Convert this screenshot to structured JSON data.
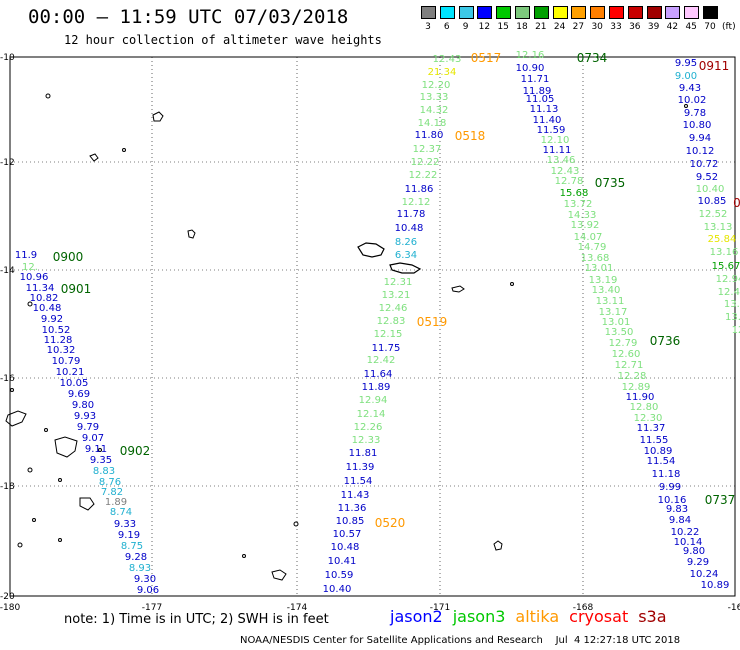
{
  "title": "00:00 – 11:59 UTC 07/03/2018",
  "subtitle": "12 hour collection of altimeter wave heights",
  "colorbar": {
    "labels": [
      "3",
      "6",
      "9",
      "12",
      "15",
      "18",
      "21",
      "24",
      "27",
      "30",
      "33",
      "36",
      "39",
      "42",
      "45",
      "70",
      "(ft)"
    ],
    "colors": [
      "#7f7f7f",
      "#00e5ff",
      "#3cc8e6",
      "#0000ff",
      "#00c800",
      "#7cc87c",
      "#00a000",
      "#ffff00",
      "#ffa000",
      "#ff7f00",
      "#ff0000",
      "#c80000",
      "#a00000",
      "#c8a0ff",
      "#ffc8ff",
      "#000000"
    ]
  },
  "axes": {
    "lat_labels": [
      "-10",
      "-12",
      "-14",
      "-16",
      "-18",
      "-20"
    ],
    "lon_labels": [
      "-180",
      "-177",
      "-174",
      "-171",
      "-168",
      "-16"
    ]
  },
  "times": [
    {
      "t": "0517",
      "c": "#ff9900"
    },
    {
      "t": "0734",
      "c": "#006400"
    },
    {
      "t": "0911",
      "c": "#a00000"
    },
    {
      "t": "0518",
      "c": "#ff9900"
    },
    {
      "t": "0735",
      "c": "#006400"
    },
    {
      "t": "0900",
      "c": "#006400"
    },
    {
      "t": "0901",
      "c": "#006400"
    },
    {
      "t": "0519",
      "c": "#ff9900"
    },
    {
      "t": "0736",
      "c": "#006400"
    },
    {
      "t": "0902",
      "c": "#006400"
    },
    {
      "t": "0520",
      "c": "#ff9900"
    },
    {
      "t": "0737",
      "c": "#006400"
    },
    {
      "t": "0",
      "c": "#a00000"
    }
  ],
  "values": [
    [
      "12.43",
      "#7ee07e"
    ],
    [
      "21.34",
      "#e6e600"
    ],
    [
      "12.20",
      "#7ee07e"
    ],
    [
      "13.33",
      "#7ee07e"
    ],
    [
      "14.32",
      "#7ee07e"
    ],
    [
      "14.18",
      "#7ee07e"
    ],
    [
      "11.80",
      "#0000c8"
    ],
    [
      "12.37",
      "#7ee07e"
    ],
    [
      "12.22",
      "#7ee07e"
    ],
    [
      "12.22",
      "#7ee07e"
    ],
    [
      "11.86",
      "#0000c8"
    ],
    [
      "12.12",
      "#7ee07e"
    ],
    [
      "11.78",
      "#0000c8"
    ],
    [
      "10.48",
      "#0000c8"
    ],
    [
      "8.26",
      "#20b0d0"
    ],
    [
      "6.34",
      "#20b0d0"
    ],
    [
      "12.31",
      "#7ee07e"
    ],
    [
      "13.21",
      "#7ee07e"
    ],
    [
      "12.46",
      "#7ee07e"
    ],
    [
      "12.83",
      "#7ee07e"
    ],
    [
      "12.15",
      "#7ee07e"
    ],
    [
      "11.75",
      "#0000c8"
    ],
    [
      "12.42",
      "#7ee07e"
    ],
    [
      "11.64",
      "#0000c8"
    ],
    [
      "11.89",
      "#0000c8"
    ],
    [
      "12.94",
      "#7ee07e"
    ],
    [
      "12.14",
      "#7ee07e"
    ],
    [
      "12.26",
      "#7ee07e"
    ],
    [
      "12.33",
      "#7ee07e"
    ],
    [
      "11.81",
      "#0000c8"
    ],
    [
      "11.39",
      "#0000c8"
    ],
    [
      "11.54",
      "#0000c8"
    ],
    [
      "11.43",
      "#0000c8"
    ],
    [
      "11.36",
      "#0000c8"
    ],
    [
      "10.85",
      "#0000c8"
    ],
    [
      "10.57",
      "#0000c8"
    ],
    [
      "10.48",
      "#0000c8"
    ],
    [
      "10.41",
      "#0000c8"
    ],
    [
      "10.59",
      "#0000c8"
    ],
    [
      "10.40",
      "#0000c8"
    ],
    [
      "12.16",
      "#7ee07e"
    ],
    [
      "10.90",
      "#0000c8"
    ],
    [
      "11.71",
      "#0000c8"
    ],
    [
      "11.89",
      "#0000c8"
    ],
    [
      "11.05",
      "#0000c8"
    ],
    [
      "11.13",
      "#0000c8"
    ],
    [
      "11.40",
      "#0000c8"
    ],
    [
      "11.59",
      "#0000c8"
    ],
    [
      "12.10",
      "#7ee07e"
    ],
    [
      "11.11",
      "#0000c8"
    ],
    [
      "13.46",
      "#7ee07e"
    ],
    [
      "12.43",
      "#7ee07e"
    ],
    [
      "12.78",
      "#7ee07e"
    ],
    [
      "15.68",
      "#00a000"
    ],
    [
      "13.72",
      "#7ee07e"
    ],
    [
      "14.33",
      "#7ee07e"
    ],
    [
      "13.92",
      "#7ee07e"
    ],
    [
      "14.07",
      "#7ee07e"
    ],
    [
      "14.79",
      "#7ee07e"
    ],
    [
      "13.68",
      "#7ee07e"
    ],
    [
      "13.01",
      "#7ee07e"
    ],
    [
      "13.19",
      "#7ee07e"
    ],
    [
      "13.40",
      "#7ee07e"
    ],
    [
      "13.11",
      "#7ee07e"
    ],
    [
      "13.17",
      "#7ee07e"
    ],
    [
      "13.01",
      "#7ee07e"
    ],
    [
      "13.50",
      "#7ee07e"
    ],
    [
      "12.79",
      "#7ee07e"
    ],
    [
      "12.60",
      "#7ee07e"
    ],
    [
      "12.71",
      "#7ee07e"
    ],
    [
      "12.28",
      "#7ee07e"
    ],
    [
      "12.89",
      "#7ee07e"
    ],
    [
      "11.90",
      "#0000c8"
    ],
    [
      "12.80",
      "#7ee07e"
    ],
    [
      "12.30",
      "#7ee07e"
    ],
    [
      "11.37",
      "#0000c8"
    ],
    [
      "11.55",
      "#0000c8"
    ],
    [
      "10.89",
      "#0000c8"
    ],
    [
      "11.54",
      "#0000c8"
    ],
    [
      "11.18",
      "#0000c8"
    ],
    [
      "9.99",
      "#0000c8"
    ],
    [
      "10.16",
      "#0000c8"
    ],
    [
      "9.83",
      "#0000c8"
    ],
    [
      "9.84",
      "#0000c8"
    ],
    [
      "10.22",
      "#0000c8"
    ],
    [
      "10.14",
      "#0000c8"
    ],
    [
      "9.80",
      "#0000c8"
    ],
    [
      "9.29",
      "#0000c8"
    ],
    [
      "10.24",
      "#0000c8"
    ],
    [
      "10.89",
      "#0000c8"
    ],
    [
      "9.95",
      "#0000c8"
    ],
    [
      "9.00",
      "#20b0d0"
    ],
    [
      "9.43",
      "#0000c8"
    ],
    [
      "10.02",
      "#0000c8"
    ],
    [
      "9.78",
      "#0000c8"
    ],
    [
      "10.80",
      "#0000c8"
    ],
    [
      "9.94",
      "#0000c8"
    ],
    [
      "10.12",
      "#0000c8"
    ],
    [
      "10.72",
      "#0000c8"
    ],
    [
      "9.52",
      "#0000c8"
    ],
    [
      "10.40",
      "#7ee07e"
    ],
    [
      "10.85",
      "#0000c8"
    ],
    [
      "12.52",
      "#7ee07e"
    ],
    [
      "13.13",
      "#7ee07e"
    ],
    [
      "25.84",
      "#e6e600"
    ],
    [
      "13.16",
      "#7ee07e"
    ],
    [
      "15.67",
      "#00a000"
    ],
    [
      "12.94",
      "#7ee07e"
    ],
    [
      "12.43",
      "#7ee07e"
    ],
    [
      "13.3",
      "#7ee07e"
    ],
    [
      "13.",
      "#7ee07e"
    ],
    [
      "12",
      "#7ee07e"
    ],
    [
      "11.9",
      "#0000c8"
    ],
    [
      "12.",
      "#7ee07e"
    ],
    [
      "10.96",
      "#0000c8"
    ],
    [
      "11.34",
      "#0000c8"
    ],
    [
      "10.82",
      "#0000c8"
    ],
    [
      "10.48",
      "#0000c8"
    ],
    [
      "9.92",
      "#0000c8"
    ],
    [
      "10.52",
      "#0000c8"
    ],
    [
      "11.28",
      "#0000c8"
    ],
    [
      "10.32",
      "#0000c8"
    ],
    [
      "10.79",
      "#0000c8"
    ],
    [
      "10.21",
      "#0000c8"
    ],
    [
      "10.05",
      "#0000c8"
    ],
    [
      "9.69",
      "#0000c8"
    ],
    [
      "9.80",
      "#0000c8"
    ],
    [
      "9.93",
      "#0000c8"
    ],
    [
      "9.79",
      "#0000c8"
    ],
    [
      "9.07",
      "#0000c8"
    ],
    [
      "9.11",
      "#0000c8"
    ],
    [
      "9.35",
      "#0000c8"
    ],
    [
      "8.83",
      "#20b0d0"
    ],
    [
      "8.76",
      "#20b0d0"
    ],
    [
      "7.82",
      "#20b0d0"
    ],
    [
      "1.89",
      "#7f7f7f"
    ],
    [
      "8.74",
      "#20b0d0"
    ],
    [
      "9.33",
      "#0000c8"
    ],
    [
      "9.19",
      "#0000c8"
    ],
    [
      "8.75",
      "#20b0d0"
    ],
    [
      "9.28",
      "#0000c8"
    ],
    [
      "8.93",
      "#20b0d0"
    ],
    [
      "9.30",
      "#0000c8"
    ],
    [
      "9.06",
      "#0000c8"
    ],
    [
      "8.17",
      "#20b0d0"
    ],
    [
      "7.84",
      "#20b0d0"
    ]
  ],
  "note": "note:  1) Time is in UTC;  2) SWH is in feet",
  "legend": [
    {
      "label": "jason2",
      "color": "#0000ff"
    },
    {
      "label": "jason3",
      "color": "#00c800"
    },
    {
      "label": "altika",
      "color": "#ff9900"
    },
    {
      "label": "cryosat",
      "color": "#ff0000"
    },
    {
      "label": "s3a",
      "color": "#a00000"
    }
  ],
  "footer": "NOAA/NESDIS Center for Satellite Applications and Research    Jul  4 12:27:18 UTC 2018"
}
